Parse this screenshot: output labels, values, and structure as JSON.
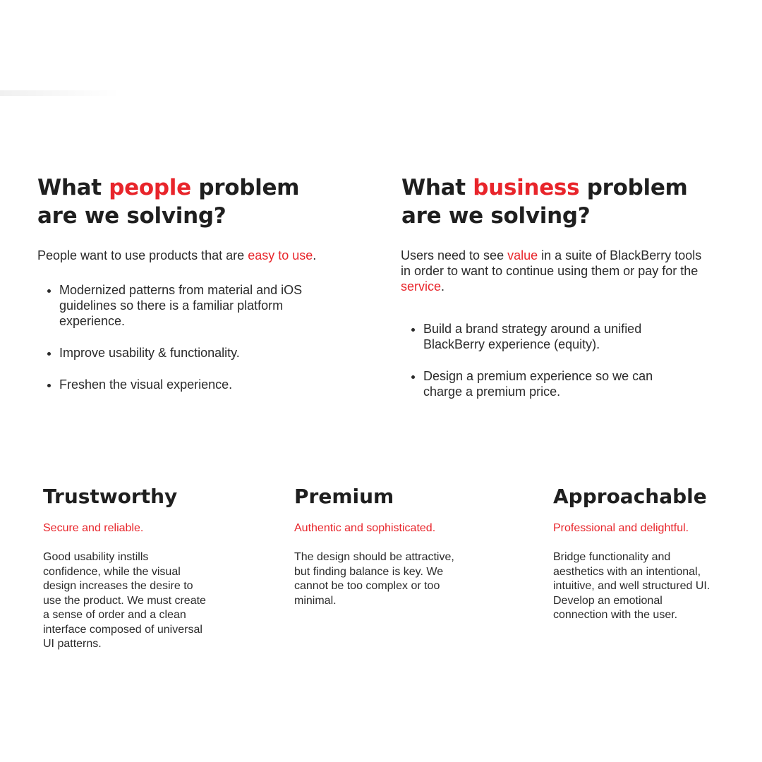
{
  "colors": {
    "accent": "#e8252b",
    "text": "#222222",
    "background": "#ffffff"
  },
  "people": {
    "heading_pre": "What ",
    "heading_accent": "people",
    "heading_post": " problem are we solving?",
    "lead_pre": "People want to use products that are ",
    "lead_accent": "easy to use",
    "lead_post": ".",
    "bullets": [
      "Modernized patterns from material and iOS guidelines so there is a familiar platform experience.",
      "Improve usability & functionality.",
      "Freshen the visual experience."
    ]
  },
  "business": {
    "heading_pre": "What ",
    "heading_accent": "business",
    "heading_post": " problem are we solving?",
    "lead_pre": "Users need to see ",
    "lead_accent1": "value",
    "lead_mid": " in a suite of BlackBerry tools in order to want to continue using them or pay for the ",
    "lead_accent2": "service",
    "lead_post": ".",
    "bullets": [
      "Build a brand strategy around a unified BlackBerry experience (equity).",
      "Design a premium experience so we can charge a premium price."
    ]
  },
  "pillars": [
    {
      "title": "Trustworthy",
      "subtitle": "Secure and reliable.",
      "body": "Good usability instills confidence, while the visual design increases the desire to use the product. We must create a sense of order and  a clean interface composed of universal UI patterns."
    },
    {
      "title": "Premium",
      "subtitle": "Authentic and sophisticated.",
      "body": "The design should be attractive, but finding balance is key. We cannot be too complex or too minimal."
    },
    {
      "title": "Approachable",
      "subtitle": "Professional and delightful.",
      "body": "Bridge functionality and aesthetics with an intentional, intuitive, and well structured UI. Develop an emotional connection with the user."
    }
  ]
}
